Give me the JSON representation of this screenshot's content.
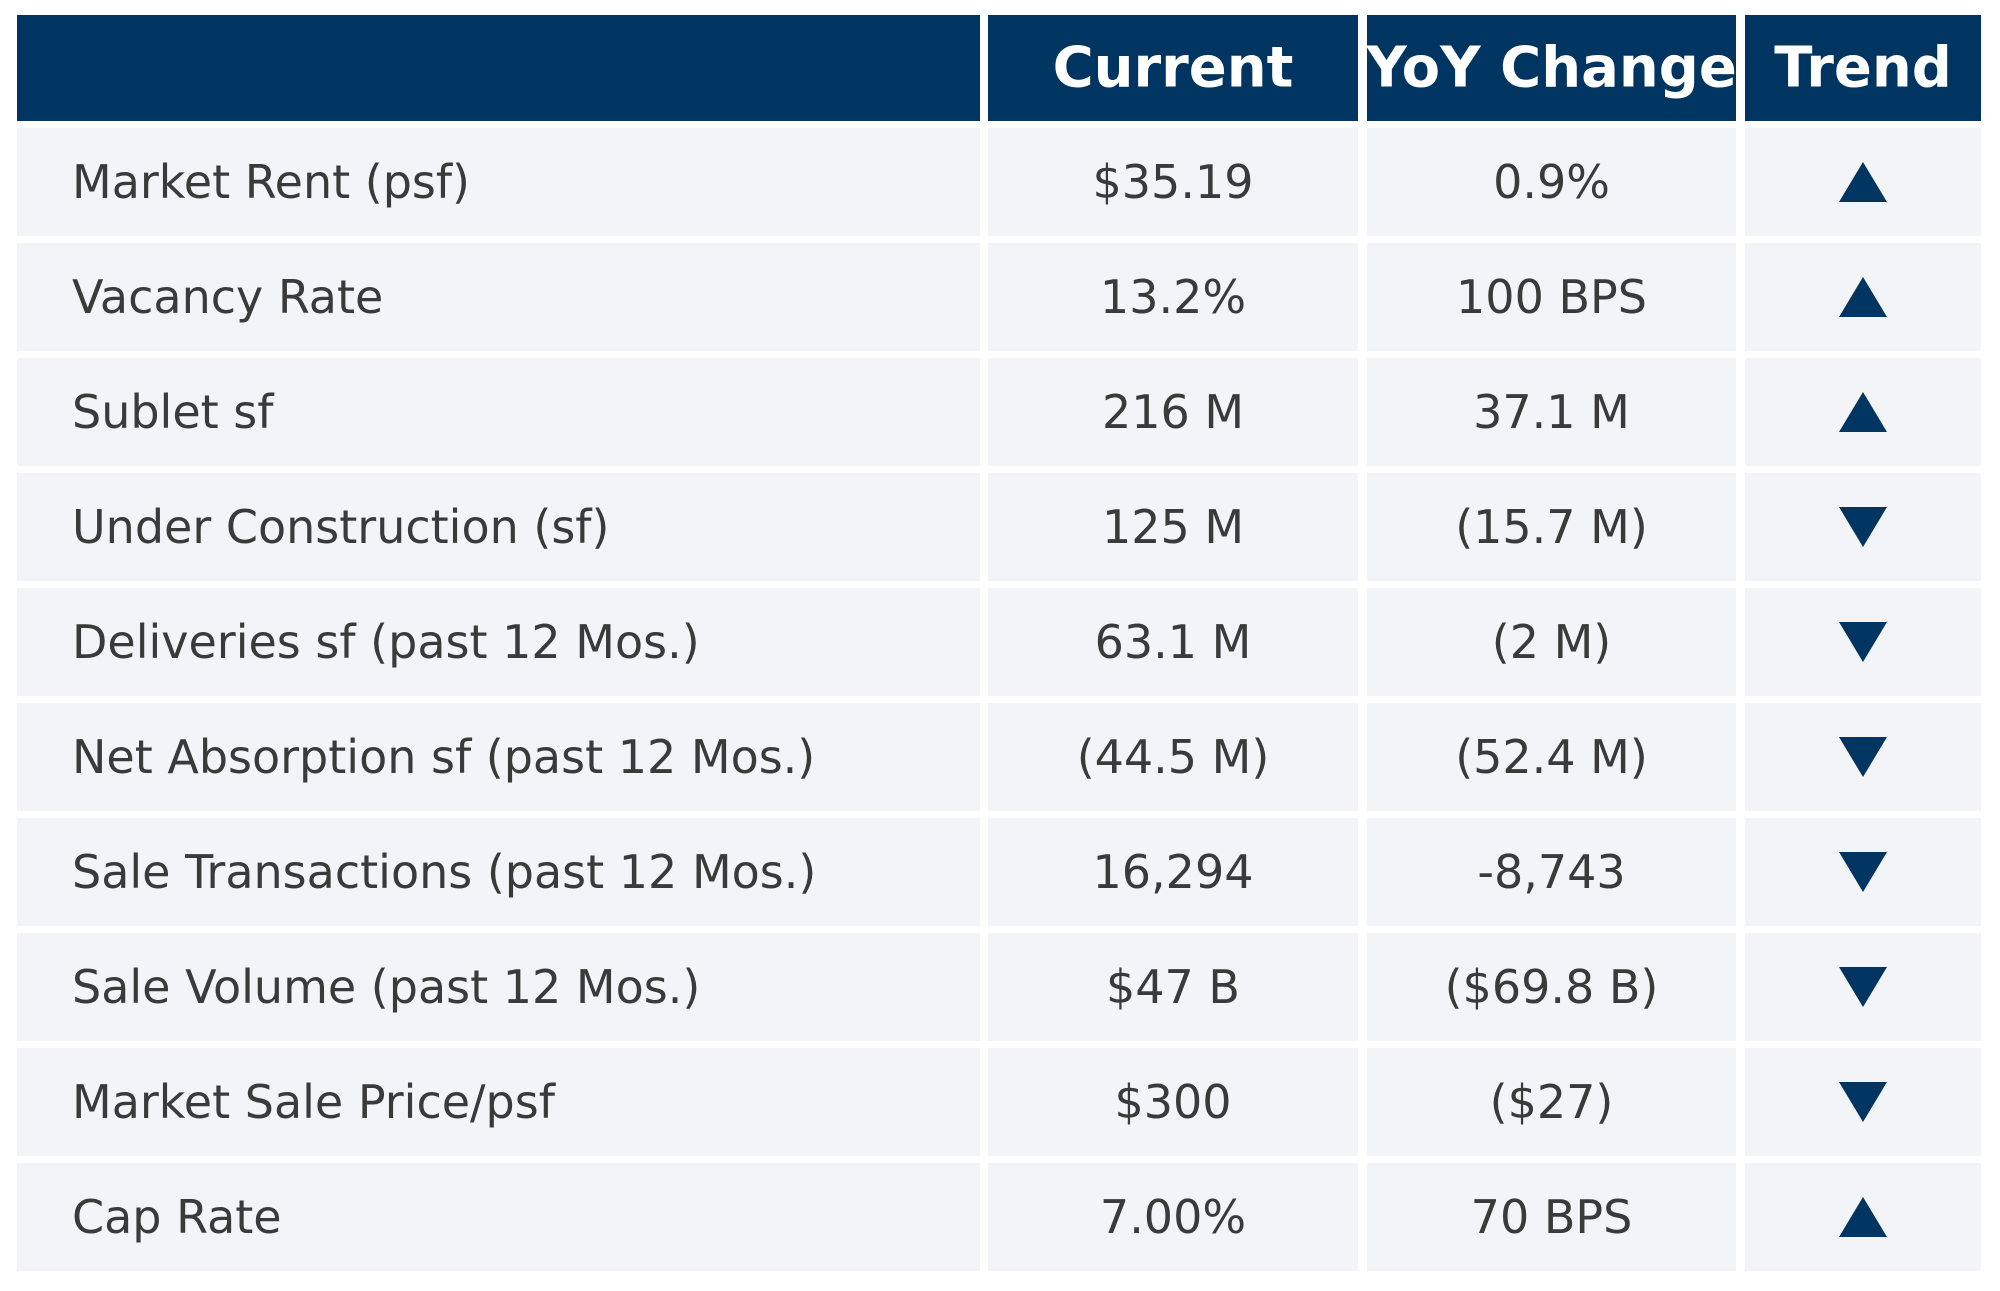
{
  "table": {
    "columns": [
      "Current",
      "YoY Change",
      "Trend"
    ],
    "rows": [
      [
        "Market Rent (psf)",
        "$35.19",
        "0.9%"
      ],
      [
        "Vacancy Rate",
        "13.2%",
        "100 BPS"
      ],
      [
        "Sublet sf",
        "216 M",
        "37.1 M"
      ],
      [
        "Under Construction (sf)",
        "125 M",
        "(15.7 M)"
      ],
      [
        "Deliveries sf (past 12 Mos.)",
        "63.1 M",
        "(2 M)"
      ],
      [
        "Net Absorption sf (past 12 Mos.)",
        "(44.5 M)",
        "(52.4 M)"
      ],
      [
        "Sale Transactions (past 12 Mos.)",
        "16,294",
        "-8,743"
      ],
      [
        "Sale Volume (past 12 Mos.)",
        "$47 B",
        "($69.8 B)"
      ],
      [
        "Market Sale Price/psf",
        "$300",
        "($27)"
      ],
      [
        "Cap Rate",
        "7.00%",
        "70 BPS"
      ]
    ]
  }
}
